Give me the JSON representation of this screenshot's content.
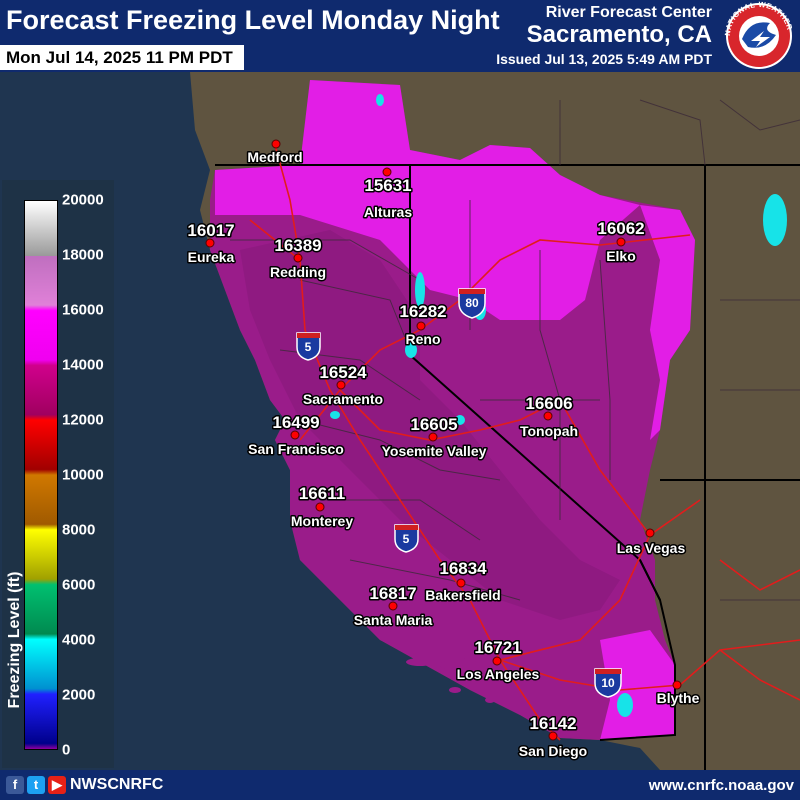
{
  "header": {
    "title": "Forecast Freezing Level Monday Night",
    "valid_time": "Mon Jul 14, 2025 11 PM PDT",
    "office": "River Forecast Center",
    "city": "Sacramento, CA",
    "issued": "Issued Jul 13, 2025 5:49 AM PDT",
    "logo_text": "NATIONAL WEATHER SERVICE"
  },
  "legend": {
    "title": "Freezing Level (ft)",
    "ticks": [
      "20000",
      "18000",
      "16000",
      "14000",
      "12000",
      "10000",
      "8000",
      "6000",
      "4000",
      "2000",
      "0"
    ],
    "range": [
      0,
      20000
    ]
  },
  "stations": [
    {
      "name": "Medford",
      "value": ""
    },
    {
      "name": "Alturas",
      "value": "15631"
    },
    {
      "name": "Eureka",
      "value": "16017"
    },
    {
      "name": "Redding",
      "value": "16389"
    },
    {
      "name": "Elko",
      "value": "16062"
    },
    {
      "name": "Reno",
      "value": "16282"
    },
    {
      "name": "Sacramento",
      "value": "16524"
    },
    {
      "name": "San Francisco",
      "value": "16499"
    },
    {
      "name": "Tonopah",
      "value": "16606"
    },
    {
      "name": "Yosemite Valley",
      "value": "16605"
    },
    {
      "name": "Monterey",
      "value": "16611"
    },
    {
      "name": "Las Vegas",
      "value": ""
    },
    {
      "name": "Bakersfield",
      "value": "16834"
    },
    {
      "name": "Santa Maria",
      "value": "16817"
    },
    {
      "name": "Los Angeles",
      "value": "16721"
    },
    {
      "name": "Blythe",
      "value": ""
    },
    {
      "name": "San Diego",
      "value": "16142"
    }
  ],
  "shields": [
    {
      "route": "80"
    },
    {
      "route": "5"
    },
    {
      "route": "5"
    },
    {
      "route": "10"
    }
  ],
  "footer": {
    "handle": "NWSCNRFC",
    "website": "www.cnrfc.noaa.gov"
  },
  "icons": [
    "facebook-icon",
    "twitter-icon",
    "youtube-icon",
    "nws-logo"
  ],
  "colors": {
    "header_bg": "#0f2a6e",
    "ocean": "#1f3550",
    "land": "#5f5440",
    "magenta_high": "#ff00ff",
    "purple_mid": "#9a1c8a",
    "station_dot": "#ff0000",
    "roads": "#e21c1c"
  }
}
